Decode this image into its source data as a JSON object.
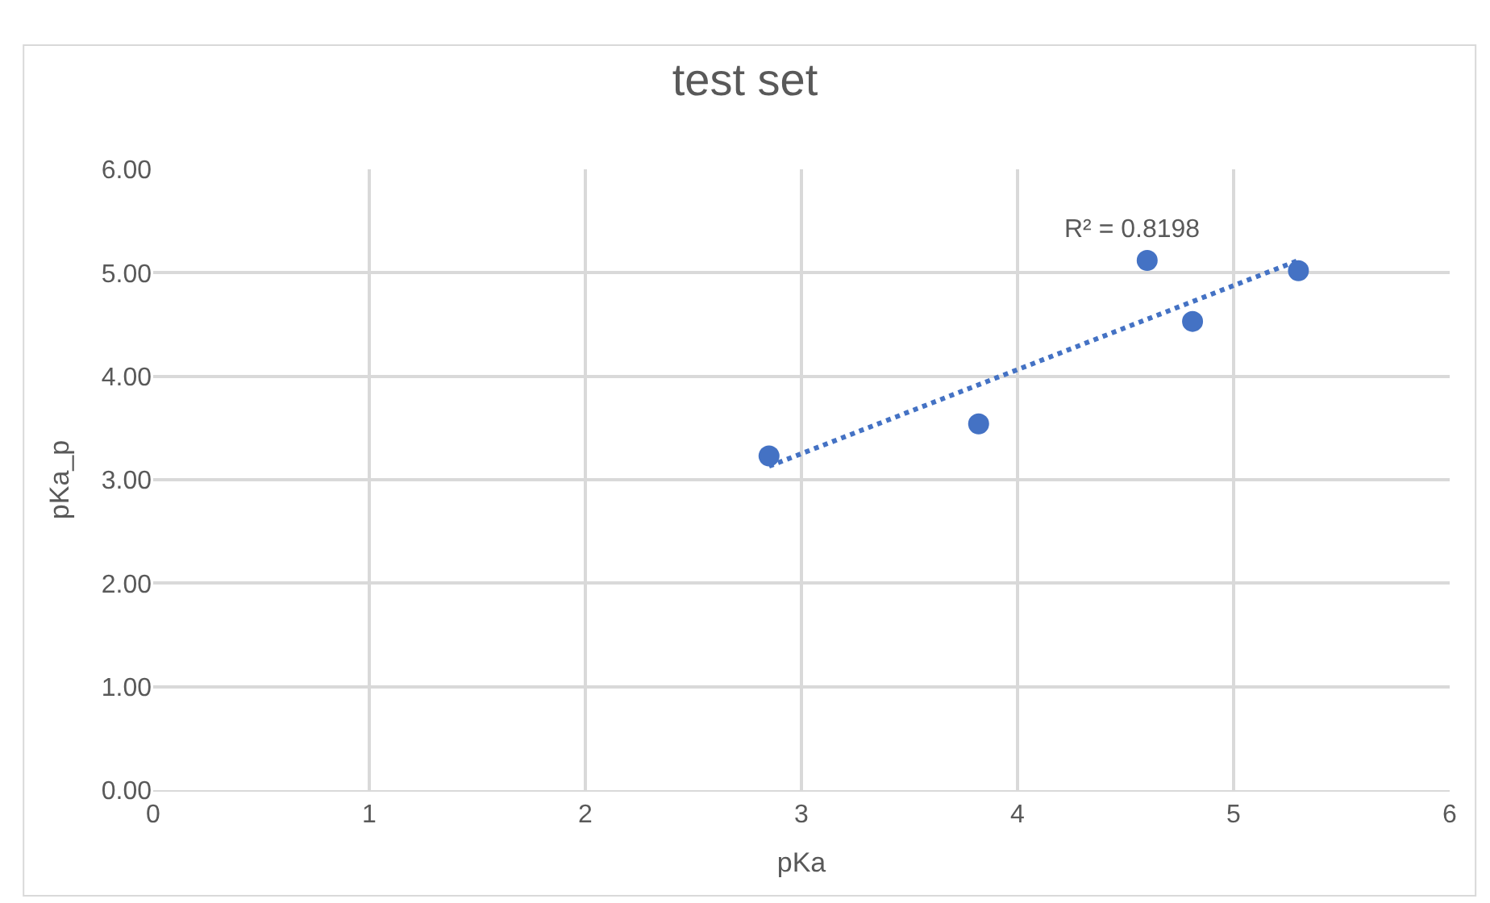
{
  "chart_data": {
    "type": "scatter",
    "title": "test set",
    "xlabel": "pKa",
    "ylabel": "pKa_p",
    "series": [
      {
        "color": "#4472c4",
        "x": [
          2.85,
          3.82,
          4.6,
          4.81,
          5.3
        ],
        "values": [
          3.23,
          3.54,
          5.12,
          4.53,
          5.02
        ],
        "marker": "circle"
      },
      {
        "type": "line",
        "color": "#4472c4",
        "x": [
          2.85,
          5.3
        ],
        "values": [
          3.13,
          5.12
        ],
        "line_style": "dotted",
        "marker": "none"
      }
    ],
    "annotations": [
      "R² = 0.8198"
    ],
    "xlim": [
      0,
      6
    ],
    "xticks": [
      0,
      1,
      2,
      3,
      4,
      5,
      6
    ],
    "ylim": [
      0,
      6
    ],
    "yticks": [
      {
        "value": 0,
        "label": "0.00"
      },
      {
        "value": 1,
        "label": "1.00"
      },
      {
        "value": 2,
        "label": "2.00"
      },
      {
        "value": 3,
        "label": "3.00"
      },
      {
        "value": 4,
        "label": "4.00"
      },
      {
        "value": 5,
        "label": "5.00"
      },
      {
        "value": 6,
        "label": "6.00"
      }
    ],
    "grid": true
  }
}
